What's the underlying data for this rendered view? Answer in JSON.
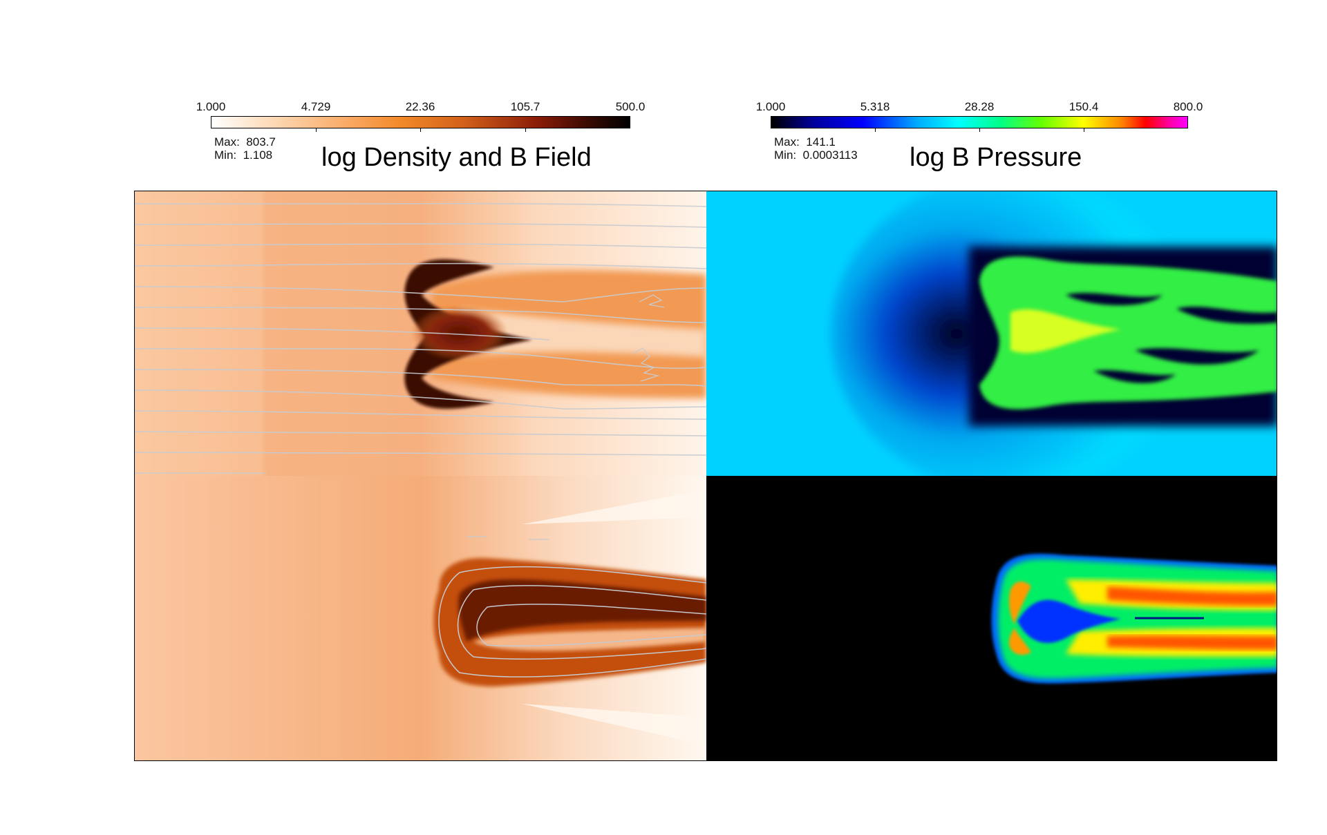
{
  "density_panel": {
    "title": "log Density and B Field",
    "colorbar": {
      "ticks": [
        "1.000",
        "4.729",
        "22.36",
        "105.7",
        "500.0"
      ],
      "colormap": "orange-heat",
      "colors": [
        "#ffffff",
        "#f9a35a",
        "#d3611a",
        "#8a1c08",
        "#000000"
      ]
    },
    "max_label": "Max:",
    "max_value": "803.7",
    "min_label": "Min:",
    "min_value": "1.108"
  },
  "pressure_panel": {
    "title": "log B Pressure",
    "colorbar": {
      "ticks": [
        "1.000",
        "5.318",
        "28.28",
        "150.4",
        "800.0"
      ],
      "colormap": "rainbow",
      "colors": [
        "#000000",
        "#0000ff",
        "#00ffff",
        "#66ff00",
        "#ffff00",
        "#ff0000",
        "#ff00ff"
      ]
    },
    "max_label": "Max:",
    "max_value": "141.1",
    "min_label": "Min:",
    "min_value": "0.0003113"
  }
}
